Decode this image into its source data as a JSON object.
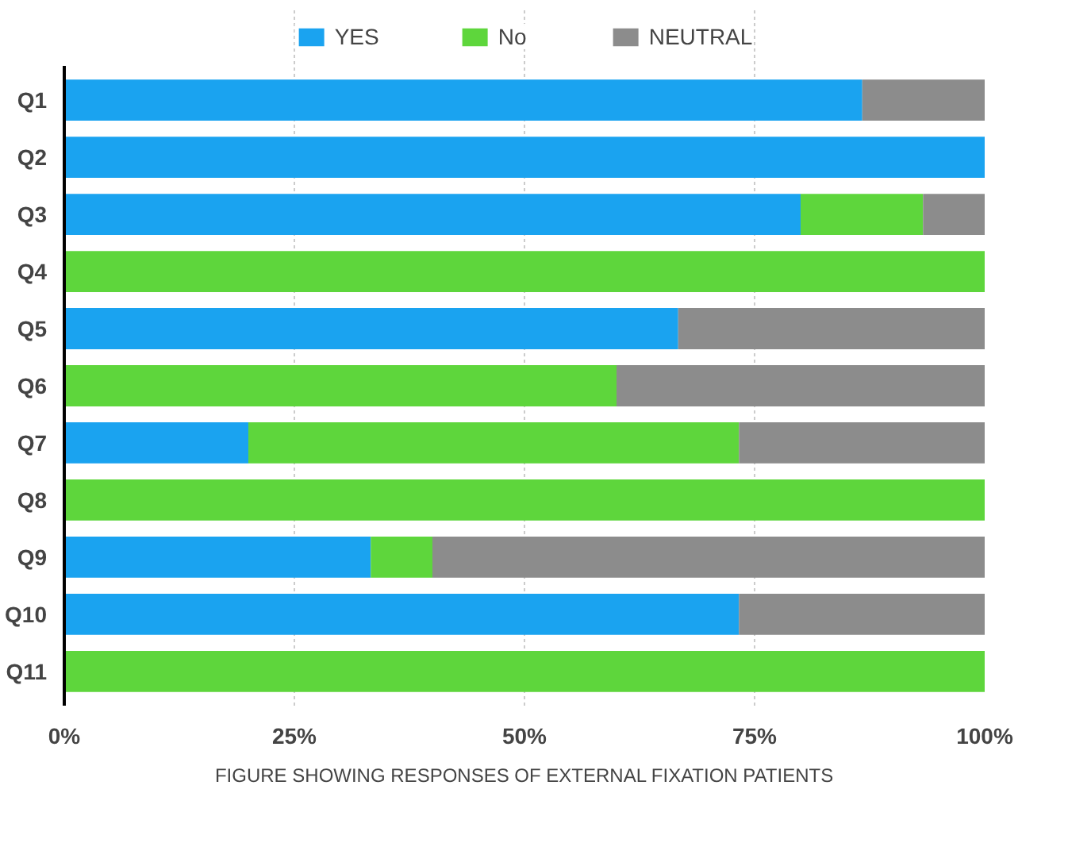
{
  "chart_data": {
    "type": "bar",
    "orientation": "horizontal",
    "stacked": true,
    "categories": [
      "Q1",
      "Q2",
      "Q3",
      "Q4",
      "Q5",
      "Q6",
      "Q7",
      "Q8",
      "Q9",
      "Q10",
      "Q11"
    ],
    "series": [
      {
        "name": "YES",
        "color": "#1aa3f0",
        "values": [
          86.7,
          100,
          80,
          0,
          66.7,
          0,
          20,
          0,
          33.3,
          73.3,
          0
        ]
      },
      {
        "name": "No",
        "color": "#5ed63c",
        "values": [
          0,
          0,
          13.3,
          100,
          0,
          60,
          53.3,
          100,
          6.7,
          0,
          100
        ]
      },
      {
        "name": "NEUTRAL",
        "color": "#8c8c8c",
        "values": [
          13.3,
          0,
          6.7,
          0,
          33.3,
          40,
          26.7,
          0,
          60,
          26.7,
          0
        ]
      }
    ],
    "xlim": [
      0,
      100
    ],
    "xticks": [
      {
        "value": 0,
        "label": "0%"
      },
      {
        "value": 25,
        "label": "25%"
      },
      {
        "value": 50,
        "label": "50%"
      },
      {
        "value": 75,
        "label": "75%"
      },
      {
        "value": 100,
        "label": "100%"
      }
    ],
    "grid": "x",
    "legend": "top",
    "annotations": [
      "FIGURE SHOWING RESPONSES OF EXTERNAL FIXATION PATIENTS"
    ]
  }
}
